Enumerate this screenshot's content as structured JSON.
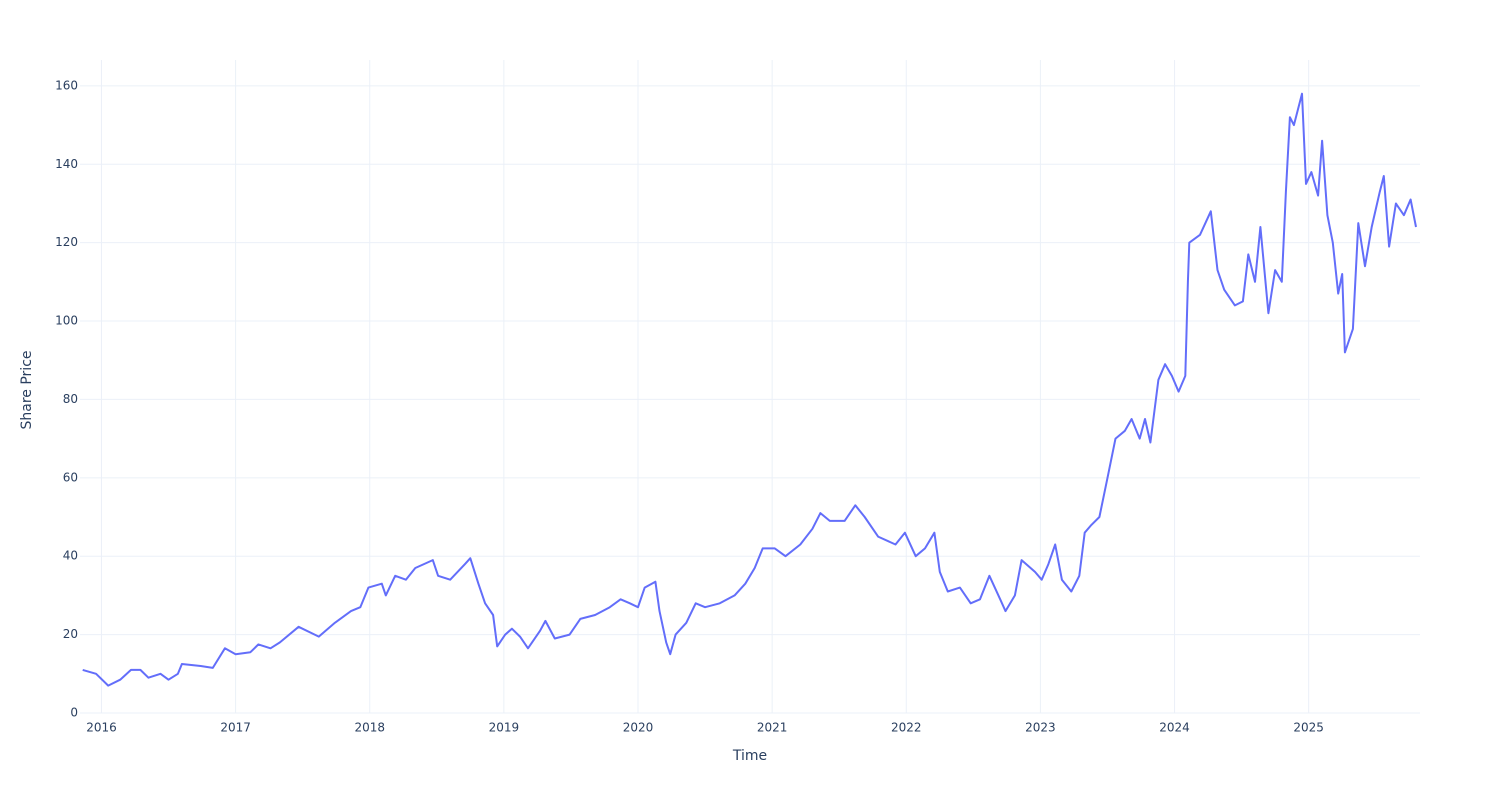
{
  "chart_data": {
    "type": "line",
    "x_label": "Time",
    "y_label": "Share Price",
    "x": [
      2015.86,
      2015.96,
      2016.05,
      2016.14,
      2016.22,
      2016.29,
      2016.35,
      2016.44,
      2016.5,
      2016.57,
      2016.6,
      2016.74,
      2016.83,
      2016.92,
      2017.0,
      2017.11,
      2017.17,
      2017.26,
      2017.33,
      2017.47,
      2017.62,
      2017.74,
      2017.86,
      2017.93,
      2017.99,
      2018.09,
      2018.12,
      2018.19,
      2018.27,
      2018.34,
      2018.47,
      2018.51,
      2018.6,
      2018.71,
      2018.75,
      2018.81,
      2018.86,
      2018.92,
      2018.95,
      2019.01,
      2019.06,
      2019.12,
      2019.18,
      2019.27,
      2019.31,
      2019.38,
      2019.49,
      2019.57,
      2019.68,
      2019.79,
      2019.87,
      2019.94,
      2020.0,
      2020.05,
      2020.13,
      2020.16,
      2020.21,
      2020.24,
      2020.28,
      2020.36,
      2020.43,
      2020.5,
      2020.61,
      2020.72,
      2020.8,
      2020.87,
      2020.93,
      2021.02,
      2021.1,
      2021.21,
      2021.3,
      2021.36,
      2021.43,
      2021.54,
      2021.62,
      2021.69,
      2021.79,
      2021.92,
      2021.99,
      2022.07,
      2022.14,
      2022.21,
      2022.25,
      2022.31,
      2022.4,
      2022.48,
      2022.55,
      2022.62,
      2022.7,
      2022.74,
      2022.81,
      2022.86,
      2022.96,
      2023.01,
      2023.06,
      2023.11,
      2023.16,
      2023.23,
      2023.29,
      2023.33,
      2023.38,
      2023.44,
      2023.5,
      2023.56,
      2023.63,
      2023.68,
      2023.74,
      2023.78,
      2023.82,
      2023.88,
      2023.93,
      2023.98,
      2024.03,
      2024.08,
      2024.1,
      2024.11,
      2024.19,
      2024.23,
      2024.27,
      2024.32,
      2024.37,
      2024.45,
      2024.51,
      2024.55,
      2024.6,
      2024.64,
      2024.7,
      2024.75,
      2024.8,
      2024.83,
      2024.86,
      2024.89,
      2024.95,
      2024.98,
      2025.02,
      2025.07,
      2025.1,
      2025.14,
      2025.18,
      2025.22,
      2025.25,
      2025.27,
      2025.33,
      2025.37,
      2025.42,
      2025.47,
      2025.53,
      2025.56,
      2025.6,
      2025.65,
      2025.71,
      2025.76,
      2025.8
    ],
    "values": [
      11,
      10,
      7,
      8.5,
      11,
      11,
      9,
      10,
      8.5,
      10,
      12.5,
      12,
      11.5,
      16.5,
      15,
      15.5,
      17.5,
      16.5,
      18,
      22,
      19.5,
      23,
      26,
      27,
      32,
      33,
      30,
      35,
      34,
      37,
      39,
      35,
      34,
      38,
      39.5,
      33,
      28,
      25,
      17,
      20,
      21.5,
      19.5,
      16.5,
      21,
      23.5,
      19,
      20,
      24,
      25,
      27,
      29,
      28,
      27,
      32,
      33.5,
      26,
      18,
      15,
      20,
      23,
      28,
      27,
      28,
      30,
      33,
      37,
      42,
      42,
      40,
      43,
      47,
      51,
      49,
      49,
      53,
      50,
      45,
      43,
      46,
      40,
      42,
      46,
      36,
      31,
      32,
      28,
      29,
      35,
      29,
      26,
      30,
      39,
      36,
      34,
      38,
      43,
      34,
      31,
      35,
      46,
      48,
      50,
      60,
      70,
      72,
      75,
      70,
      75,
      69,
      85,
      89,
      86,
      82,
      86,
      110,
      120,
      122,
      125,
      128,
      113,
      108,
      104,
      105,
      117,
      110,
      124,
      102,
      113,
      110,
      133,
      152,
      150,
      158,
      135,
      138,
      132,
      146,
      127,
      120,
      107,
      112,
      92,
      98,
      125,
      114,
      124,
      133,
      137,
      119,
      130,
      127,
      131,
      124
    ],
    "color": "#636efa",
    "xlim": [
      2015.84,
      2025.83
    ],
    "xticks": [
      2016,
      2017,
      2018,
      2019,
      2020,
      2021,
      2022,
      2023,
      2024,
      2025
    ],
    "ylim": [
      0,
      166.6
    ],
    "yticks": [
      0,
      20,
      40,
      60,
      80,
      100,
      120,
      140,
      160
    ],
    "grid": true
  }
}
